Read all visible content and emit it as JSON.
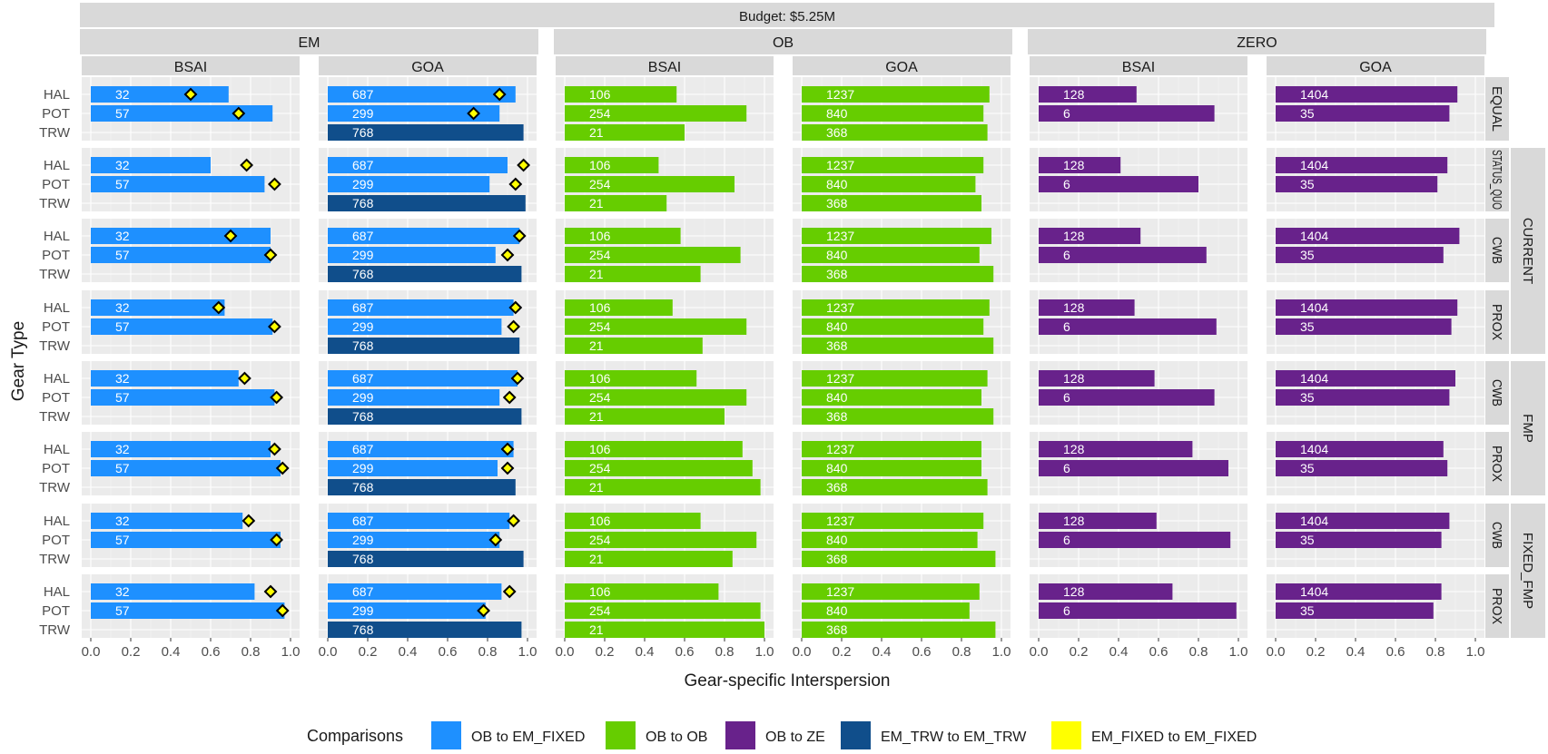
{
  "chart_data": {
    "type": "bar",
    "orientation": "horizontal",
    "title": "Budget: $5.25M",
    "xlabel": "Gear-specific Interspersion",
    "ylabel": "Gear Type",
    "xlim": [
      0,
      1
    ],
    "xticks": [
      "0.0",
      "0.2",
      "0.4",
      "0.6",
      "0.8",
      "1.0"
    ],
    "gear_types": [
      "HAL",
      "POT",
      "TRW"
    ],
    "column_groups": [
      "EM",
      "OB",
      "ZERO"
    ],
    "regions": [
      "BSAI",
      "GOA"
    ],
    "row_groups": [
      {
        "label": "",
        "rows": [
          "EQUAL"
        ]
      },
      {
        "label": "CURRENT",
        "rows": [
          "STATUS_QUO",
          "CWB",
          "PROX"
        ]
      },
      {
        "label": "FMP",
        "rows": [
          "CWB",
          "PROX"
        ]
      },
      {
        "label": "FIXED_FMP",
        "rows": [
          "CWB",
          "PROX"
        ]
      }
    ],
    "rows": [
      "EQUAL",
      "STATUS_QUO",
      "CWB",
      "PROX",
      "CWB",
      "PROX",
      "CWB",
      "PROX"
    ],
    "grid": true,
    "legend": {
      "position": "bottom",
      "title": "Comparisons",
      "items": [
        {
          "label": "OB to EM_FIXED",
          "color": "#1E90FF"
        },
        {
          "label": "OB to OB",
          "color": "#66CD00"
        },
        {
          "label": "OB to ZE",
          "color": "#68228B"
        },
        {
          "label": "EM_TRW to EM_TRW",
          "color": "#104E8B"
        },
        {
          "label": "EM_FIXED to EM_FIXED",
          "color": "#FFFF00"
        }
      ]
    },
    "series": [
      {
        "name": "OB to EM_FIXED",
        "color": "#1E90FF",
        "column": "EM",
        "panels": [
          {
            "region": "BSAI",
            "gear": [
              "HAL",
              "POT"
            ],
            "labels": [
              "32",
              "57"
            ],
            "values": [
              [
                0.69,
                0.91
              ],
              [
                0.6,
                0.87
              ],
              [
                0.9,
                0.9
              ],
              [
                0.67,
                0.91
              ],
              [
                0.74,
                0.92
              ],
              [
                0.9,
                0.95
              ],
              [
                0.76,
                0.95
              ],
              [
                0.82,
                0.97
              ]
            ]
          },
          {
            "region": "GOA",
            "gear": [
              "HAL",
              "POT"
            ],
            "labels": [
              "687",
              "299"
            ],
            "values": [
              [
                0.94,
                0.86
              ],
              [
                0.9,
                0.81
              ],
              [
                0.96,
                0.84
              ],
              [
                0.93,
                0.87
              ],
              [
                0.95,
                0.86
              ],
              [
                0.93,
                0.85
              ],
              [
                0.91,
                0.86
              ],
              [
                0.87,
                0.79
              ]
            ]
          }
        ]
      },
      {
        "name": "EM_TRW to EM_TRW",
        "color": "#104E8B",
        "column": "EM",
        "panels": [
          {
            "region": "GOA",
            "gear": [
              "TRW"
            ],
            "labels": [
              "768"
            ],
            "values": [
              [
                0.98
              ],
              [
                0.99
              ],
              [
                0.97
              ],
              [
                0.96
              ],
              [
                0.97
              ],
              [
                0.94
              ],
              [
                0.98
              ],
              [
                0.97
              ]
            ]
          }
        ]
      },
      {
        "name": "OB to OB",
        "color": "#66CD00",
        "column": "OB",
        "panels": [
          {
            "region": "BSAI",
            "gear": [
              "HAL",
              "POT",
              "TRW"
            ],
            "labels": [
              "106",
              "254",
              "21"
            ],
            "values": [
              [
                0.56,
                0.91,
                0.6
              ],
              [
                0.47,
                0.85,
                0.51
              ],
              [
                0.58,
                0.88,
                0.68
              ],
              [
                0.54,
                0.91,
                0.69
              ],
              [
                0.66,
                0.91,
                0.8
              ],
              [
                0.89,
                0.94,
                0.98
              ],
              [
                0.68,
                0.96,
                0.84
              ],
              [
                0.77,
                0.98,
                1.0
              ]
            ]
          },
          {
            "region": "GOA",
            "gear": [
              "HAL",
              "POT",
              "TRW"
            ],
            "labels": [
              "1237",
              "840",
              "368"
            ],
            "values": [
              [
                0.94,
                0.91,
                0.93
              ],
              [
                0.91,
                0.87,
                0.9
              ],
              [
                0.95,
                0.89,
                0.96
              ],
              [
                0.94,
                0.91,
                0.96
              ],
              [
                0.93,
                0.9,
                0.96
              ],
              [
                0.9,
                0.9,
                0.93
              ],
              [
                0.91,
                0.88,
                0.97
              ],
              [
                0.89,
                0.84,
                0.97
              ]
            ]
          }
        ]
      },
      {
        "name": "OB to ZE",
        "color": "#68228B",
        "column": "ZERO",
        "panels": [
          {
            "region": "BSAI",
            "gear": [
              "HAL",
              "POT"
            ],
            "labels": [
              "128",
              "6"
            ],
            "values": [
              [
                0.49,
                0.88
              ],
              [
                0.41,
                0.8
              ],
              [
                0.51,
                0.84
              ],
              [
                0.48,
                0.89
              ],
              [
                0.58,
                0.88
              ],
              [
                0.77,
                0.95
              ],
              [
                0.59,
                0.96
              ],
              [
                0.67,
                0.99
              ]
            ]
          },
          {
            "region": "GOA",
            "gear": [
              "HAL",
              "POT"
            ],
            "labels": [
              "1404",
              "35"
            ],
            "values": [
              [
                0.91,
                0.87
              ],
              [
                0.86,
                0.81
              ],
              [
                0.92,
                0.84
              ],
              [
                0.91,
                0.88
              ],
              [
                0.9,
                0.87
              ],
              [
                0.84,
                0.86
              ],
              [
                0.87,
                0.83
              ],
              [
                0.83,
                0.79
              ]
            ]
          }
        ]
      },
      {
        "name": "EM_FIXED to EM_FIXED",
        "color": "#FFFF00",
        "column": "EM",
        "mark": "diamond",
        "panels": [
          {
            "region": "BSAI",
            "gear": [
              "HAL",
              "POT"
            ],
            "values": [
              [
                0.5,
                0.74
              ],
              [
                0.78,
                0.92
              ],
              [
                0.7,
                0.9
              ],
              [
                0.64,
                0.92
              ],
              [
                0.77,
                0.93
              ],
              [
                0.92,
                0.96
              ],
              [
                0.79,
                0.93
              ],
              [
                0.9,
                0.96
              ]
            ]
          },
          {
            "region": "GOA",
            "gear": [
              "HAL",
              "POT"
            ],
            "values": [
              [
                0.86,
                0.73
              ],
              [
                0.98,
                0.94
              ],
              [
                0.96,
                0.9
              ],
              [
                0.94,
                0.93
              ],
              [
                0.95,
                0.91
              ],
              [
                0.9,
                0.9
              ],
              [
                0.93,
                0.84
              ],
              [
                0.91,
                0.78
              ]
            ]
          }
        ]
      }
    ]
  }
}
